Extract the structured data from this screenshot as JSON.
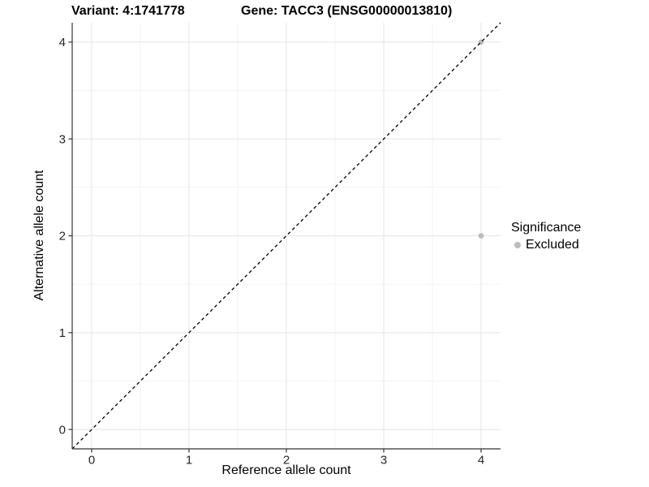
{
  "header": {
    "title_left": "Variant: 4:1741778",
    "title_right": "Gene: TACC3 (ENSG00000013810)"
  },
  "chart_data": {
    "type": "scatter",
    "title": "Variant: 4:1741778   Gene: TACC3 (ENSG00000013810)",
    "xlabel": "Reference allele count",
    "ylabel": "Alternative allele count",
    "xlim": [
      -0.2,
      4.2
    ],
    "ylim": [
      -0.2,
      4.2
    ],
    "x_ticks": [
      0,
      1,
      2,
      3,
      4
    ],
    "y_ticks": [
      0,
      1,
      2,
      3,
      4
    ],
    "x_minor_ticks": [
      0.5,
      1.5,
      2.5,
      3.5
    ],
    "y_minor_ticks": [
      0.5,
      1.5,
      2.5,
      3.5
    ],
    "grid": "major+minor",
    "points": [
      {
        "x": 4,
        "y": 2,
        "series": "Excluded"
      },
      {
        "x": 4,
        "y": 4,
        "series": "Excluded"
      }
    ],
    "reference_line": {
      "slope": 1,
      "intercept": 0,
      "style": "dashed",
      "color": "#000000"
    },
    "legend": {
      "title": "Significance",
      "position": "right",
      "entries": [
        {
          "label": "Excluded",
          "color": "#BDBDBD",
          "marker": "circle"
        }
      ]
    },
    "colors": {
      "point_excluded": "#BDBDBD",
      "grid_major": "#E4E4E4",
      "grid_minor": "#F2F2F2",
      "axis_line": "#333333",
      "tick_text": "#262626",
      "title_text": "#000000",
      "background": "#FFFFFF"
    }
  }
}
